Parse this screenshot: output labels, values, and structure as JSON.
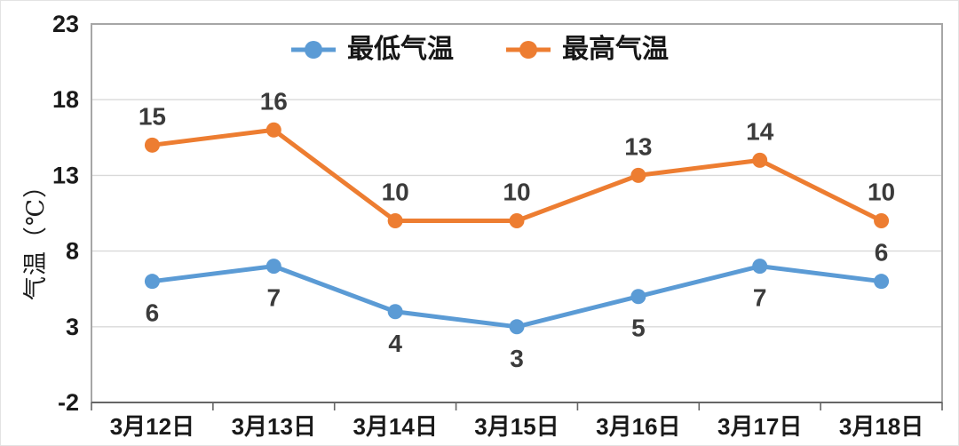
{
  "chart_data": {
    "type": "line",
    "title": "",
    "categories": [
      "3月12日",
      "3月13日",
      "3月14日",
      "3月15日",
      "3月16日",
      "3月17日",
      "3月18日"
    ],
    "series": [
      {
        "name": "最低气温",
        "color": "#5B9BD5",
        "values": [
          6,
          7,
          4,
          3,
          5,
          7,
          6
        ],
        "label_positions": [
          "below",
          "below",
          "below",
          "below",
          "below",
          "below",
          "above"
        ]
      },
      {
        "name": "最高气温",
        "color": "#ED7D31",
        "values": [
          15,
          16,
          10,
          10,
          13,
          14,
          10
        ],
        "label_positions": [
          "above",
          "above",
          "above",
          "above",
          "above",
          "above",
          "above"
        ]
      }
    ],
    "xlabel": "",
    "ylabel": "气温（℃）",
    "ylim": [
      -2,
      23
    ],
    "yticks": [
      -2,
      3,
      8,
      13,
      18,
      23
    ],
    "grid": "horizontal",
    "legend_position": "top-center",
    "colors": {
      "gridline": "#D9D9D9",
      "plot_border": "#A6A6A6",
      "axis_line": "#666666",
      "tick_label": "#1a1a1a",
      "data_label": "#3b3b3b"
    }
  }
}
